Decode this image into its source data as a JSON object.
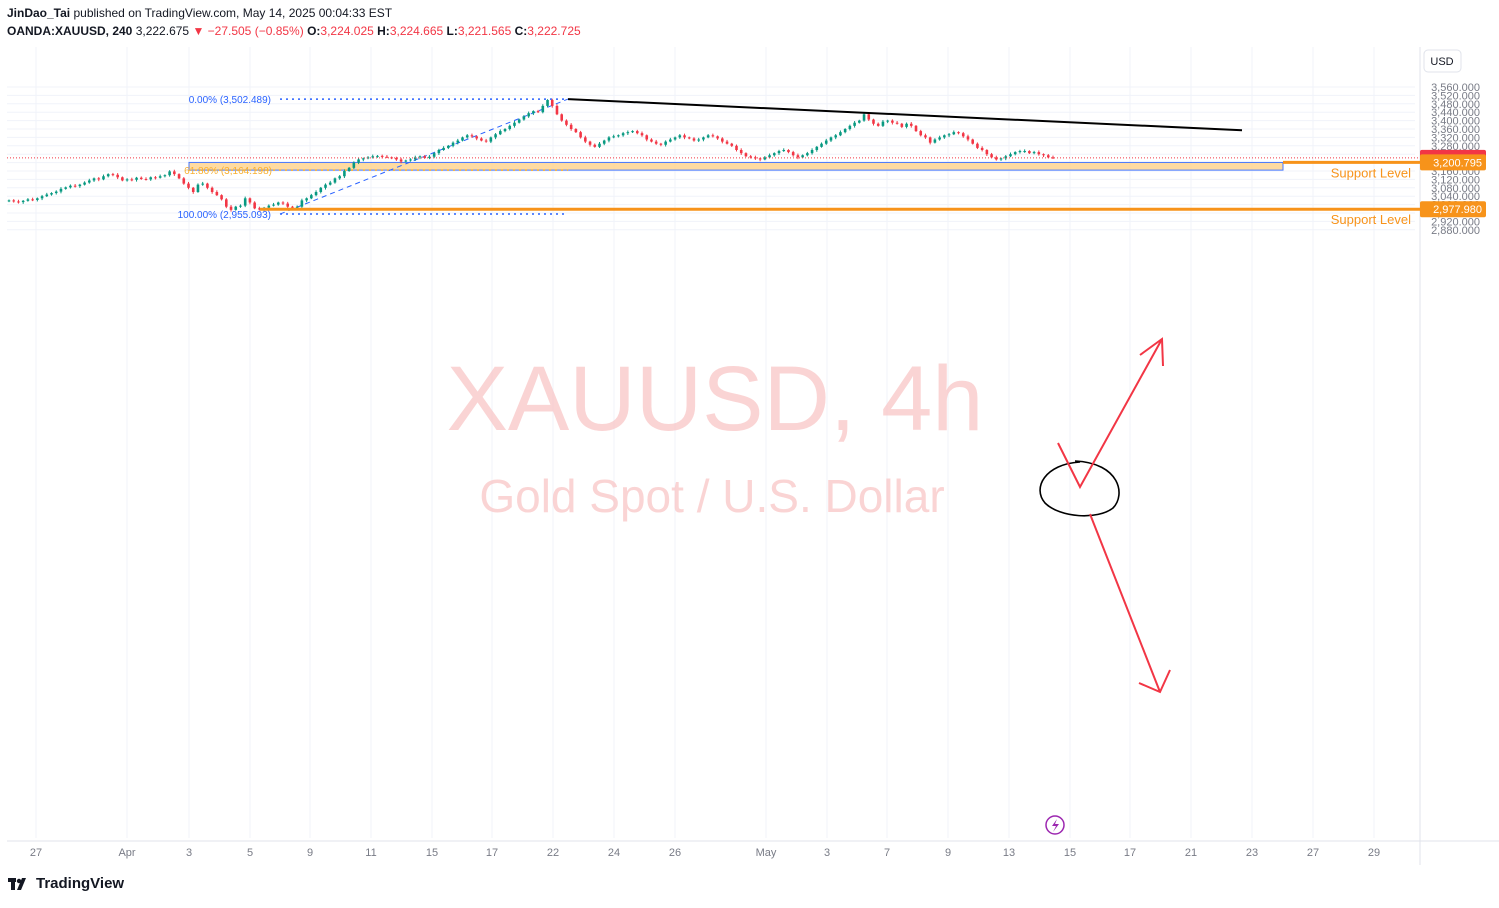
{
  "header": {
    "author": "JinDao_Tai",
    "published_text": "published on TradingView.com, May 14, 2025 00:04:33 EST",
    "symbol": "OANDA:XAUUSD, 240",
    "last": "3,222.675",
    "change": "▼ −27.505 (−0.85%)",
    "o_label": "O:",
    "o": "3,224.025",
    "h_label": "H:",
    "h": "3,224.665",
    "l_label": "L:",
    "l": "3,221.565",
    "c_label": "C:",
    "c": "3,222.725"
  },
  "currency_button": "USD",
  "brand": {
    "name": "TradingView",
    "logo_icon": "tradingview-logo-icon"
  },
  "watermark": {
    "title": "XAUUSD, 4h",
    "subtitle": "Gold Spot / U.S. Dollar"
  },
  "colors": {
    "up": "#089981",
    "down": "#f23645",
    "support": "#f7931a",
    "zone_fill": "#ffd591",
    "zone_border": "#2962ff",
    "fib": "#2962ff",
    "fib_618": "#f7b032",
    "arrow": "#f23645",
    "trendline": "#000000",
    "watermark": "#f9c6c6",
    "flash": "#9c27b0"
  },
  "chart_data": {
    "type": "candlestick",
    "y_axis": {
      "range": [
        2850,
        3590
      ],
      "ticks": [
        "3,560.000",
        "3,520.000",
        "3,480.000",
        "3,440.000",
        "3,400.000",
        "3,360.000",
        "3,320.000",
        "3,280.000",
        "3,240.000",
        "3,200.000",
        "3,160.000",
        "3,120.000",
        "3,080.000",
        "3,040.000",
        "3,000.000",
        "2,960.000",
        "2,920.000",
        "2,880.000"
      ]
    },
    "x_axis": {
      "ticks": [
        "27",
        "Apr",
        "3",
        "5",
        "9",
        "11",
        "15",
        "17",
        "22",
        "24",
        "26",
        "May",
        "3",
        "7",
        "9",
        "13",
        "15",
        "17",
        "21",
        "23",
        "27",
        "29"
      ]
    },
    "price_labels": [
      {
        "value": 3222.725,
        "text": "3,222.725",
        "color": "#f23645"
      },
      {
        "value": 3200.795,
        "text": "3,200.795",
        "color": "#f7931a"
      },
      {
        "value": 2977.98,
        "text": "2,977.980",
        "color": "#f7931a"
      }
    ],
    "support_levels": [
      {
        "price": 3200.795,
        "label": "Support Level"
      },
      {
        "price": 2977.98,
        "label": "Support Level"
      }
    ],
    "support_zone": {
      "top": 3200.795,
      "bottom": 3164.198
    },
    "fib_levels": [
      {
        "pct": "0.00%",
        "price": 3502.489,
        "text": "0.00% (3,502.489)"
      },
      {
        "pct": "61.80%",
        "price": 3164.198,
        "text": "61.80% (3,164.198)"
      },
      {
        "pct": "100.00%",
        "price": 2955.093,
        "text": "100.00% (2,955.093)"
      }
    ],
    "trendline": {
      "from": 3502.489,
      "to": 3354
    },
    "current_price": 3222.725,
    "closes": [
      3020,
      3015,
      3012,
      3018,
      3025,
      3022,
      3030,
      3040,
      3048,
      3055,
      3062,
      3075,
      3082,
      3090,
      3088,
      3095,
      3105,
      3115,
      3125,
      3120,
      3135,
      3145,
      3142,
      3130,
      3115,
      3120,
      3118,
      3128,
      3122,
      3120,
      3130,
      3128,
      3135,
      3140,
      3158,
      3145,
      3125,
      3100,
      3080,
      3060,
      3095,
      3100,
      3080,
      3060,
      3045,
      3025,
      2990,
      2975,
      2990,
      2995,
      3030,
      3010,
      2982,
      2977,
      2985,
      2995,
      3000,
      3010,
      3005,
      2990,
      2985,
      2990,
      3020,
      3030,
      3045,
      3060,
      3080,
      3095,
      3105,
      3125,
      3135,
      3160,
      3175,
      3200,
      3215,
      3220,
      3225,
      3230,
      3232,
      3228,
      3225,
      3222,
      3215,
      3205,
      3210,
      3215,
      3225,
      3230,
      3222,
      3228,
      3245,
      3260,
      3270,
      3280,
      3295,
      3305,
      3320,
      3330,
      3325,
      3315,
      3305,
      3300,
      3320,
      3335,
      3350,
      3360,
      3375,
      3390,
      3405,
      3420,
      3435,
      3445,
      3440,
      3470,
      3498,
      3470,
      3430,
      3400,
      3380,
      3360,
      3345,
      3320,
      3300,
      3285,
      3275,
      3290,
      3305,
      3320,
      3325,
      3330,
      3340,
      3345,
      3350,
      3340,
      3330,
      3310,
      3300,
      3290,
      3285,
      3300,
      3310,
      3320,
      3330,
      3320,
      3315,
      3305,
      3310,
      3320,
      3330,
      3325,
      3315,
      3300,
      3290,
      3280,
      3260,
      3245,
      3230,
      3225,
      3220,
      3215,
      3225,
      3235,
      3245,
      3255,
      3260,
      3250,
      3235,
      3225,
      3235,
      3245,
      3260,
      3275,
      3290,
      3305,
      3320,
      3330,
      3345,
      3360,
      3375,
      3390,
      3400,
      3430,
      3405,
      3385,
      3375,
      3395,
      3400,
      3390,
      3385,
      3370,
      3385,
      3375,
      3350,
      3330,
      3320,
      3295,
      3310,
      3320,
      3330,
      3335,
      3345,
      3340,
      3325,
      3310,
      3290,
      3270,
      3260,
      3240,
      3225,
      3215,
      3220,
      3230,
      3240,
      3250,
      3255,
      3255,
      3245,
      3250,
      3240,
      3235,
      3225,
      3222.725
    ],
    "annotations": [
      "black circle at support zone",
      "red arrow up toward 3320",
      "red arrow down toward 2977.98"
    ]
  }
}
